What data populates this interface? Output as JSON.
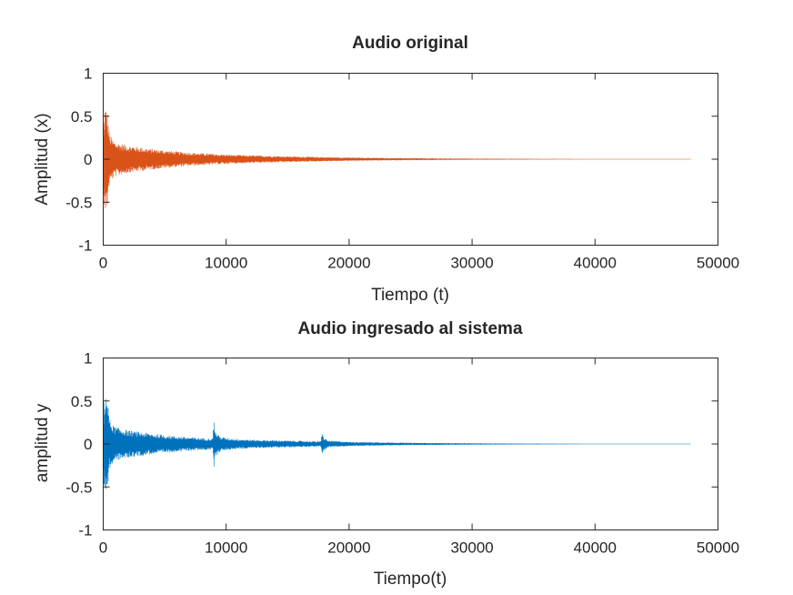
{
  "chart_data": [
    {
      "type": "line",
      "title": "Audio original",
      "xlabel": "Tiempo (t)",
      "ylabel": "Amplitud (x)",
      "xlim": [
        0,
        50000
      ],
      "ylim": [
        -1,
        1
      ],
      "xticks": [
        0,
        10000,
        20000,
        30000,
        40000,
        50000
      ],
      "xtick_labels": [
        "0",
        "10000",
        "20000",
        "30000",
        "40000",
        "50000"
      ],
      "yticks": [
        -1,
        -0.5,
        0,
        0.5,
        1
      ],
      "ytick_labels": [
        "-1",
        "-0.5",
        "0",
        "0.5",
        "1"
      ],
      "grid": false,
      "color": "#d95319",
      "series": [
        {
          "samples": 48000,
          "x": [
            0,
            50,
            150,
            300,
            500,
            800,
            1000,
            2000,
            4000,
            6000,
            8000,
            10000,
            12000,
            15000,
            18000,
            20000,
            25000,
            30000,
            35000,
            40000,
            47800
          ],
          "envelope": [
            0.02,
            0.45,
            0.62,
            0.6,
            0.3,
            0.22,
            0.2,
            0.16,
            0.12,
            0.09,
            0.07,
            0.055,
            0.045,
            0.035,
            0.025,
            0.02,
            0.012,
            0.007,
            0.005,
            0.003,
            0.002
          ]
        }
      ]
    },
    {
      "type": "line",
      "title": "Audio ingresado al sistema",
      "xlabel": "Tiempo(t)",
      "ylabel": "amplitud y",
      "xlim": [
        0,
        50000
      ],
      "ylim": [
        -1,
        1
      ],
      "xticks": [
        0,
        10000,
        20000,
        30000,
        40000,
        50000
      ],
      "xtick_labels": [
        "0",
        "10000",
        "20000",
        "30000",
        "40000",
        "50000"
      ],
      "yticks": [
        -1,
        -0.5,
        0,
        0.5,
        1
      ],
      "ytick_labels": [
        "-1",
        "-0.5",
        "0",
        "0.5",
        "1"
      ],
      "grid": false,
      "color": "#0072bd",
      "series": [
        {
          "samples": 48000,
          "x": [
            0,
            50,
            150,
            300,
            500,
            800,
            1000,
            2000,
            4000,
            6000,
            8000,
            8900,
            9000,
            9100,
            9500,
            10000,
            12000,
            15000,
            17700,
            17800,
            17900,
            18300,
            20000,
            25000,
            30000,
            35000,
            40000,
            47800
          ],
          "envelope": [
            0.02,
            0.45,
            0.62,
            0.6,
            0.3,
            0.22,
            0.2,
            0.16,
            0.12,
            0.09,
            0.07,
            0.065,
            0.3,
            0.15,
            0.09,
            0.07,
            0.05,
            0.04,
            0.03,
            0.16,
            0.08,
            0.04,
            0.025,
            0.014,
            0.008,
            0.005,
            0.003,
            0.002
          ]
        }
      ]
    }
  ]
}
